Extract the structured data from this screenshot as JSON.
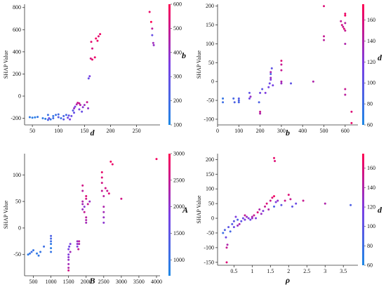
{
  "figure": {
    "background": "#ffffff",
    "colormap": [
      "#1e88e5",
      "#7b3fe4",
      "#ff0052"
    ]
  },
  "chart_data": [
    {
      "type": "scatter",
      "xlabel": "d",
      "ylabel": "SHAP Value",
      "colorbar_label": "b",
      "xlim": [
        35,
        295
      ],
      "ylim": [
        -260,
        830
      ],
      "xticks": [
        50,
        100,
        150,
        200,
        250
      ],
      "yticks": [
        -200,
        0,
        200,
        400,
        600,
        800
      ],
      "clim": [
        100,
        600
      ],
      "cticks": [
        100,
        200,
        300,
        400,
        500,
        600
      ],
      "grid": false,
      "points": [
        [
          45,
          -190,
          150
        ],
        [
          50,
          -195,
          140
        ],
        [
          55,
          -192,
          130
        ],
        [
          60,
          -188,
          160
        ],
        [
          70,
          -200,
          150
        ],
        [
          75,
          -205,
          140
        ],
        [
          80,
          -215,
          230
        ],
        [
          80,
          -170,
          180
        ],
        [
          82,
          -200,
          300
        ],
        [
          85,
          -210,
          150
        ],
        [
          90,
          -200,
          200
        ],
        [
          90,
          -180,
          160
        ],
        [
          95,
          -170,
          180
        ],
        [
          100,
          -165,
          200
        ],
        [
          100,
          -190,
          250
        ],
        [
          105,
          -200,
          170
        ],
        [
          110,
          -180,
          230
        ],
        [
          110,
          -210,
          260
        ],
        [
          115,
          -170,
          200
        ],
        [
          118,
          -195,
          320
        ],
        [
          120,
          -175,
          280
        ],
        [
          122,
          -210,
          350
        ],
        [
          125,
          -180,
          300
        ],
        [
          128,
          -130,
          250
        ],
        [
          130,
          -110,
          400
        ],
        [
          130,
          -150,
          300
        ],
        [
          132,
          -95,
          350
        ],
        [
          135,
          -75,
          450
        ],
        [
          137,
          -60,
          500
        ],
        [
          140,
          -120,
          350
        ],
        [
          140,
          -65,
          500
        ],
        [
          142,
          -80,
          450
        ],
        [
          145,
          -140,
          300
        ],
        [
          147,
          -100,
          380
        ],
        [
          150,
          -80,
          420
        ],
        [
          155,
          -55,
          500
        ],
        [
          157,
          -110,
          400
        ],
        [
          158,
          160,
          300
        ],
        [
          160,
          180,
          350
        ],
        [
          162,
          340,
          520
        ],
        [
          163,
          490,
          550
        ],
        [
          165,
          430,
          520
        ],
        [
          165,
          330,
          560
        ],
        [
          170,
          350,
          560
        ],
        [
          172,
          520,
          580
        ],
        [
          175,
          500,
          560
        ],
        [
          177,
          540,
          540
        ],
        [
          180,
          560,
          570
        ],
        [
          275,
          760,
          560
        ],
        [
          278,
          670,
          600
        ],
        [
          280,
          610,
          480
        ],
        [
          282,
          480,
          420
        ],
        [
          283,
          460,
          400
        ],
        [
          280,
          550,
          300
        ]
      ]
    },
    {
      "type": "scatter",
      "xlabel": "b",
      "ylabel": "SHAP Value",
      "colorbar_label": "d",
      "xlim": [
        0,
        660
      ],
      "ylim": [
        -115,
        205
      ],
      "xticks": [
        0,
        100,
        200,
        300,
        400,
        500,
        600
      ],
      "yticks": [
        -100,
        -50,
        0,
        50,
        100,
        150,
        200
      ],
      "clim": [
        60,
        175
      ],
      "cticks": [
        60,
        80,
        100,
        120,
        140,
        160
      ],
      "grid": false,
      "points": [
        [
          25,
          -45,
          75
        ],
        [
          25,
          -55,
          80
        ],
        [
          75,
          -45,
          85
        ],
        [
          80,
          -55,
          90
        ],
        [
          100,
          -45,
          95
        ],
        [
          100,
          -50,
          90
        ],
        [
          100,
          -55,
          85
        ],
        [
          150,
          -30,
          100
        ],
        [
          150,
          -45,
          110
        ],
        [
          155,
          -40,
          130
        ],
        [
          195,
          -55,
          90
        ],
        [
          200,
          -80,
          150
        ],
        [
          200,
          -85,
          140
        ],
        [
          200,
          -30,
          110
        ],
        [
          210,
          -20,
          100
        ],
        [
          225,
          -30,
          120
        ],
        [
          245,
          -5,
          110
        ],
        [
          250,
          5,
          120
        ],
        [
          250,
          25,
          140
        ],
        [
          250,
          10,
          130
        ],
        [
          255,
          35,
          100
        ],
        [
          250,
          20,
          90
        ],
        [
          240,
          -15,
          115
        ],
        [
          260,
          -10,
          115
        ],
        [
          300,
          55,
          160
        ],
        [
          300,
          45,
          150
        ],
        [
          300,
          30,
          150
        ],
        [
          300,
          0,
          140
        ],
        [
          300,
          -5,
          130
        ],
        [
          345,
          -5,
          100
        ],
        [
          450,
          0,
          140
        ],
        [
          500,
          200,
          160
        ],
        [
          500,
          120,
          150
        ],
        [
          500,
          110,
          145
        ],
        [
          580,
          160,
          150
        ],
        [
          585,
          150,
          155
        ],
        [
          590,
          145,
          150
        ],
        [
          595,
          140,
          160
        ],
        [
          600,
          180,
          165
        ],
        [
          600,
          175,
          170
        ],
        [
          600,
          135,
          150
        ],
        [
          600,
          155,
          145
        ],
        [
          600,
          100,
          140
        ],
        [
          600,
          -20,
          150
        ],
        [
          600,
          -35,
          145
        ],
        [
          630,
          -80,
          160
        ],
        [
          630,
          -110,
          165
        ]
      ]
    },
    {
      "type": "scatter",
      "xlabel": "B",
      "ylabel": "SHAP Value",
      "colorbar_label": "A",
      "xlim": [
        250,
        4100
      ],
      "ylim": [
        -90,
        140
      ],
      "xticks": [
        500,
        1000,
        1500,
        2000,
        2500,
        3000,
        3500,
        4000
      ],
      "yticks": [
        -50,
        0,
        50,
        100
      ],
      "clim": [
        700,
        3000
      ],
      "cticks": [
        1000,
        1500,
        2000,
        2500,
        3000
      ],
      "grid": false,
      "points": [
        [
          350,
          -50,
          900
        ],
        [
          400,
          -48,
          1000
        ],
        [
          450,
          -45,
          1100
        ],
        [
          500,
          -42,
          1000
        ],
        [
          600,
          -48,
          900
        ],
        [
          650,
          -52,
          950
        ],
        [
          700,
          -45,
          1000
        ],
        [
          800,
          -35,
          1100
        ],
        [
          1000,
          -20,
          1200
        ],
        [
          1000,
          -25,
          1100
        ],
        [
          1000,
          -30,
          900
        ],
        [
          1000,
          -38,
          850
        ],
        [
          1000,
          -45,
          1000
        ],
        [
          1000,
          -15,
          1300
        ],
        [
          1500,
          -50,
          1900
        ],
        [
          1500,
          -55,
          2000
        ],
        [
          1500,
          -60,
          2100
        ],
        [
          1500,
          -68,
          2200
        ],
        [
          1500,
          -75,
          2300
        ],
        [
          1500,
          -80,
          2600
        ],
        [
          1500,
          -40,
          1800
        ],
        [
          1520,
          -35,
          1700
        ],
        [
          1550,
          -30,
          1900
        ],
        [
          1550,
          -45,
          2200
        ],
        [
          1750,
          -25,
          2100
        ],
        [
          1750,
          -30,
          2000
        ],
        [
          1750,
          -35,
          1900
        ],
        [
          1780,
          -40,
          2500
        ],
        [
          1800,
          -30,
          2300
        ],
        [
          1800,
          -25,
          2400
        ],
        [
          1900,
          80,
          2600
        ],
        [
          1900,
          70,
          2400
        ],
        [
          1900,
          50,
          2300
        ],
        [
          1900,
          45,
          2200
        ],
        [
          1900,
          35,
          2100
        ],
        [
          1950,
          40,
          2000
        ],
        [
          1950,
          30,
          2500
        ],
        [
          2000,
          60,
          2700
        ],
        [
          2000,
          55,
          2600
        ],
        [
          2000,
          20,
          2400
        ],
        [
          2000,
          15,
          2300
        ],
        [
          2000,
          10,
          2200
        ],
        [
          2050,
          45,
          2500
        ],
        [
          2100,
          50,
          2100
        ],
        [
          2450,
          105,
          2800
        ],
        [
          2450,
          95,
          2700
        ],
        [
          2450,
          85,
          2600
        ],
        [
          2450,
          70,
          2500
        ],
        [
          2500,
          60,
          2400
        ],
        [
          2500,
          40,
          2300
        ],
        [
          2500,
          30,
          2200
        ],
        [
          2500,
          20,
          2100
        ],
        [
          2500,
          10,
          2000
        ],
        [
          2550,
          75,
          2600
        ],
        [
          2600,
          70,
          2500
        ],
        [
          2650,
          65,
          2700
        ],
        [
          2700,
          125,
          2900
        ],
        [
          2750,
          120,
          2800
        ],
        [
          3000,
          55,
          2600
        ],
        [
          4000,
          130,
          2900
        ]
      ]
    },
    {
      "type": "scatter",
      "xlabel": "ρ",
      "ylabel": "SHAP Value",
      "colorbar_label": "d",
      "xlim": [
        0.05,
        3.9
      ],
      "ylim": [
        -160,
        220
      ],
      "xticks": [
        0.5,
        1.0,
        1.5,
        2.0,
        2.5,
        3.0,
        3.5
      ],
      "yticks": [
        -150,
        -100,
        -50,
        0,
        50,
        100,
        150,
        200
      ],
      "clim": [
        60,
        175
      ],
      "cticks": [
        60,
        80,
        100,
        120,
        140,
        160
      ],
      "grid": false,
      "points": [
        [
          0.2,
          -50,
          80
        ],
        [
          0.25,
          -40,
          90
        ],
        [
          0.28,
          -65,
          110
        ],
        [
          0.3,
          -100,
          150
        ],
        [
          0.3,
          -150,
          160
        ],
        [
          0.32,
          -90,
          140
        ],
        [
          0.35,
          -30,
          100
        ],
        [
          0.4,
          -45,
          85
        ],
        [
          0.45,
          -20,
          95
        ],
        [
          0.5,
          -10,
          100
        ],
        [
          0.5,
          -30,
          110
        ],
        [
          0.55,
          5,
          120
        ],
        [
          0.6,
          -5,
          90
        ],
        [
          0.6,
          -25,
          130
        ],
        [
          0.65,
          -20,
          140
        ],
        [
          0.7,
          -10,
          100
        ],
        [
          0.75,
          0,
          110
        ],
        [
          0.8,
          -5,
          120
        ],
        [
          0.8,
          10,
          150
        ],
        [
          0.85,
          5,
          130
        ],
        [
          0.9,
          0,
          120
        ],
        [
          0.95,
          -5,
          110
        ],
        [
          1.0,
          5,
          140
        ],
        [
          1.0,
          0,
          130
        ],
        [
          1.05,
          10,
          150
        ],
        [
          1.1,
          0,
          120
        ],
        [
          1.15,
          20,
          160
        ],
        [
          1.2,
          30,
          140
        ],
        [
          1.25,
          15,
          130
        ],
        [
          1.3,
          25,
          120
        ],
        [
          1.35,
          40,
          150
        ],
        [
          1.4,
          50,
          160
        ],
        [
          1.45,
          30,
          140
        ],
        [
          1.5,
          60,
          150
        ],
        [
          1.55,
          70,
          160
        ],
        [
          1.6,
          75,
          170
        ],
        [
          1.6,
          40,
          90
        ],
        [
          1.6,
          205,
          165
        ],
        [
          1.62,
          195,
          160
        ],
        [
          1.65,
          55,
          120
        ],
        [
          1.7,
          60,
          130
        ],
        [
          1.8,
          45,
          100
        ],
        [
          1.9,
          60,
          150
        ],
        [
          2.0,
          80,
          160
        ],
        [
          2.05,
          65,
          150
        ],
        [
          2.1,
          40,
          100
        ],
        [
          2.2,
          50,
          110
        ],
        [
          2.4,
          60,
          150
        ],
        [
          3.0,
          50,
          140
        ],
        [
          3.7,
          45,
          90
        ]
      ]
    }
  ]
}
